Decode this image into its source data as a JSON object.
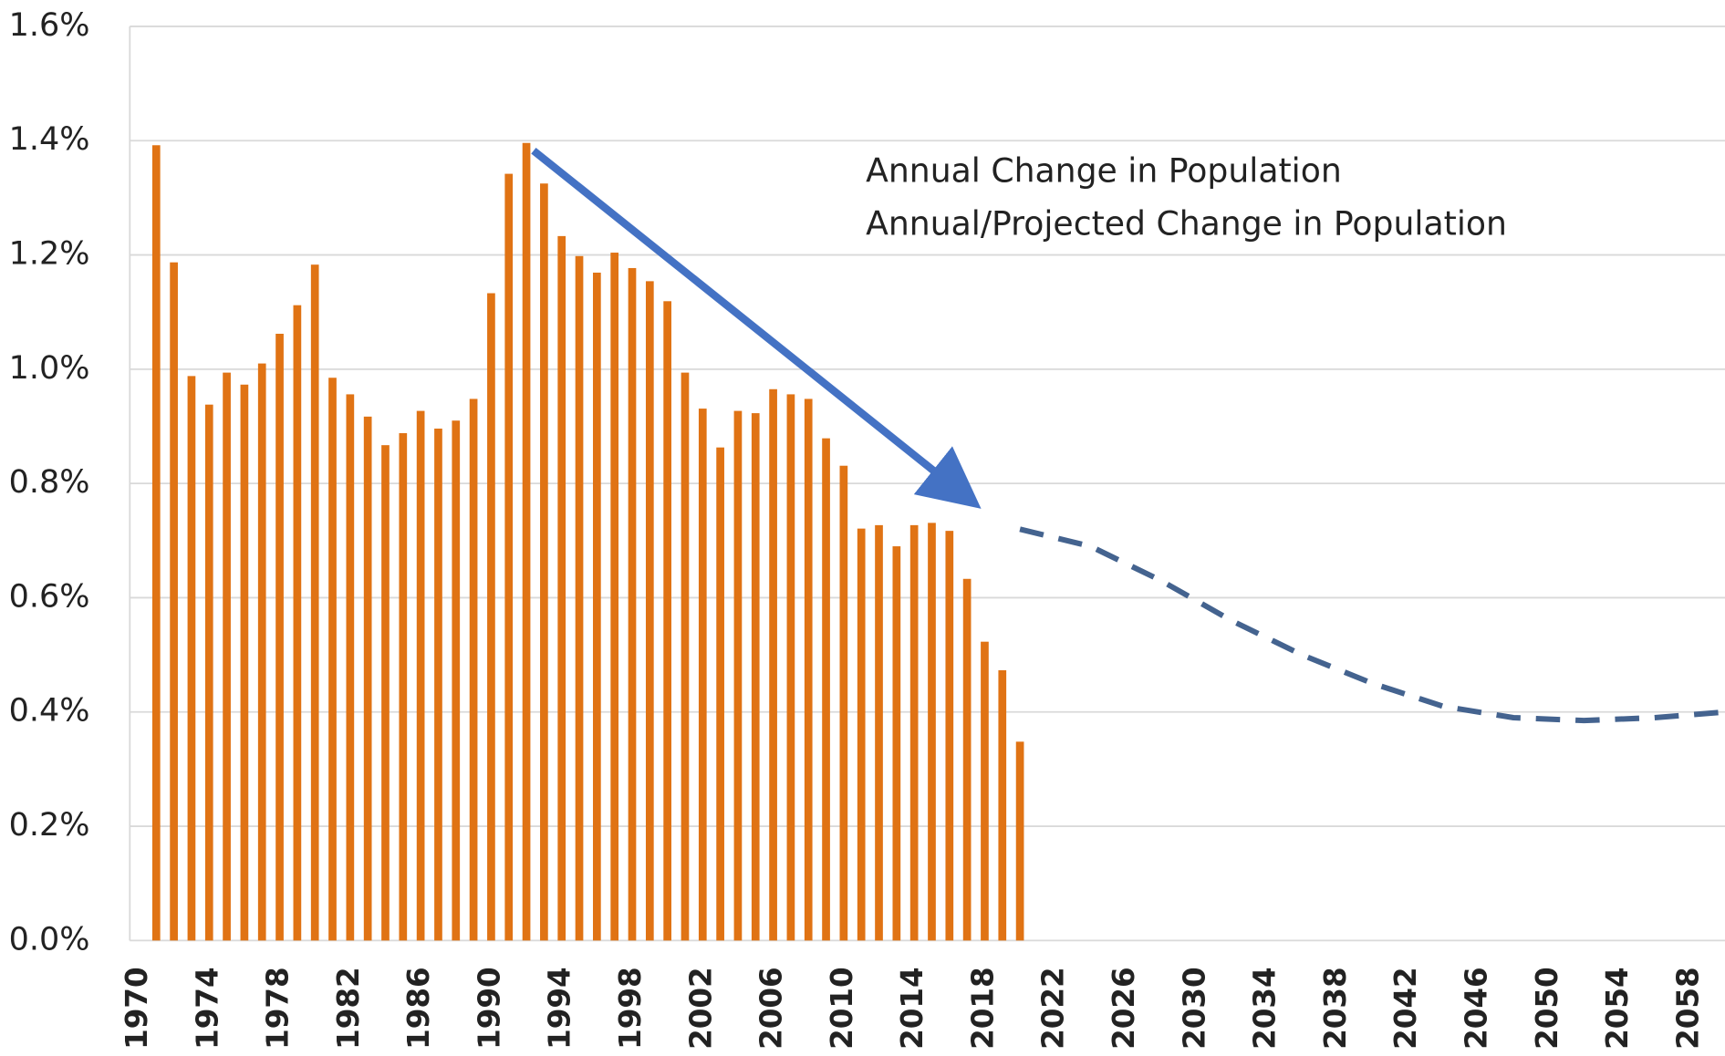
{
  "chart_data": {
    "type": "bar",
    "xlim": [
      1969.5,
      2060
    ],
    "xticks": [
      1970,
      1974,
      1978,
      1982,
      1986,
      1990,
      1994,
      1998,
      2002,
      2006,
      2010,
      2014,
      2018,
      2022,
      2026,
      2030,
      2034,
      2038,
      2042,
      2046,
      2050,
      2054,
      2058
    ],
    "ylim": [
      0,
      1.6
    ],
    "yticks": [
      {
        "value": 0,
        "label": "0.0%"
      },
      {
        "value": 0.2,
        "label": "0.2%"
      },
      {
        "value": 0.4,
        "label": "0.4%"
      },
      {
        "value": 0.6,
        "label": "0.6%"
      },
      {
        "value": 0.8,
        "label": "0.8%"
      },
      {
        "value": 1.0,
        "label": "1.0%"
      },
      {
        "value": 1.2,
        "label": "1.2%"
      },
      {
        "value": 1.4,
        "label": "1.4%"
      },
      {
        "value": 1.6,
        "label": "1.6%"
      }
    ],
    "grid": true,
    "series": [
      {
        "name": "Annual Change in Population",
        "type": "bar",
        "color": "#e07314",
        "x": [
          1971,
          1972,
          1973,
          1974,
          1975,
          1976,
          1977,
          1978,
          1979,
          1980,
          1981,
          1982,
          1983,
          1984,
          1985,
          1986,
          1987,
          1988,
          1989,
          1990,
          1991,
          1992,
          1993,
          1994,
          1995,
          1996,
          1997,
          1998,
          1999,
          2000,
          2001,
          2002,
          2003,
          2004,
          2005,
          2006,
          2007,
          2008,
          2009,
          2010,
          2011,
          2012,
          2013,
          2014,
          2015,
          2016,
          2017,
          2018,
          2019,
          2020
        ],
        "values": [
          1.392,
          1.187,
          0.988,
          0.938,
          0.994,
          0.973,
          1.01,
          1.062,
          1.112,
          1.183,
          0.985,
          0.956,
          0.917,
          0.867,
          0.888,
          0.927,
          0.896,
          0.91,
          0.948,
          1.133,
          1.342,
          1.396,
          1.325,
          1.233,
          1.198,
          1.169,
          1.204,
          1.177,
          1.154,
          1.119,
          0.994,
          0.931,
          0.863,
          0.927,
          0.923,
          0.965,
          0.956,
          0.948,
          0.879,
          0.831,
          0.721,
          0.727,
          0.69,
          0.727,
          0.731,
          0.717,
          0.633,
          0.523,
          0.473,
          0.348
        ]
      },
      {
        "name": "Annual/Projected Change in Population",
        "type": "line",
        "color": "#44638f",
        "dashed": true,
        "x": [
          2020,
          2024,
          2028,
          2032,
          2036,
          2040,
          2044,
          2048,
          2052,
          2056,
          2060
        ],
        "values": [
          0.72,
          0.69,
          0.63,
          0.56,
          0.5,
          0.45,
          0.41,
          0.39,
          0.385,
          0.39,
          0.4
        ]
      }
    ]
  }
}
